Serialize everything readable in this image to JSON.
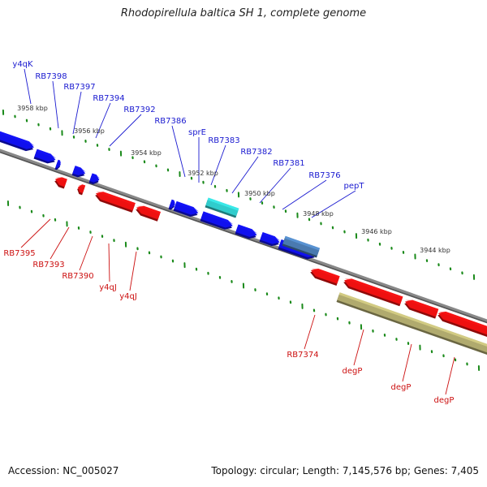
{
  "title": "Rhodopirellula baltica SH 1, complete genome",
  "footer": {
    "accession": "Accession: NC_005027",
    "stats": "Topology: circular; Length: 7,145,576 bp; Genes: 7,405"
  },
  "colors": {
    "forward_gene": "#1010ee",
    "reverse_gene": "#ee1010",
    "rrna": "#30cccc",
    "highlight": "#4a7ab0",
    "other_feature": "#b0aa6e",
    "backbone": "#888888",
    "tick": "#1a8a1a",
    "tick_label": "#333333"
  },
  "ruler": {
    "labels": [
      "3958 kbp",
      "3956 kbp",
      "3954 kbp",
      "3952 kbp",
      "3950 kbp",
      "3948 kbp",
      "3946 kbp",
      "3944 kbp"
    ]
  },
  "forward_labels": [
    "y4qK",
    "RB7398",
    "RB7397",
    "RB7394",
    "RB7392",
    "RB7386",
    "sprE",
    "RB7383",
    "RB7382",
    "RB7381",
    "RB7376",
    "pepT"
  ],
  "reverse_labels": [
    "RB7395",
    "RB7393",
    "RB7390",
    "y4qJ",
    "y4qJ",
    "RB7374",
    "degP",
    "degP",
    "degP"
  ]
}
